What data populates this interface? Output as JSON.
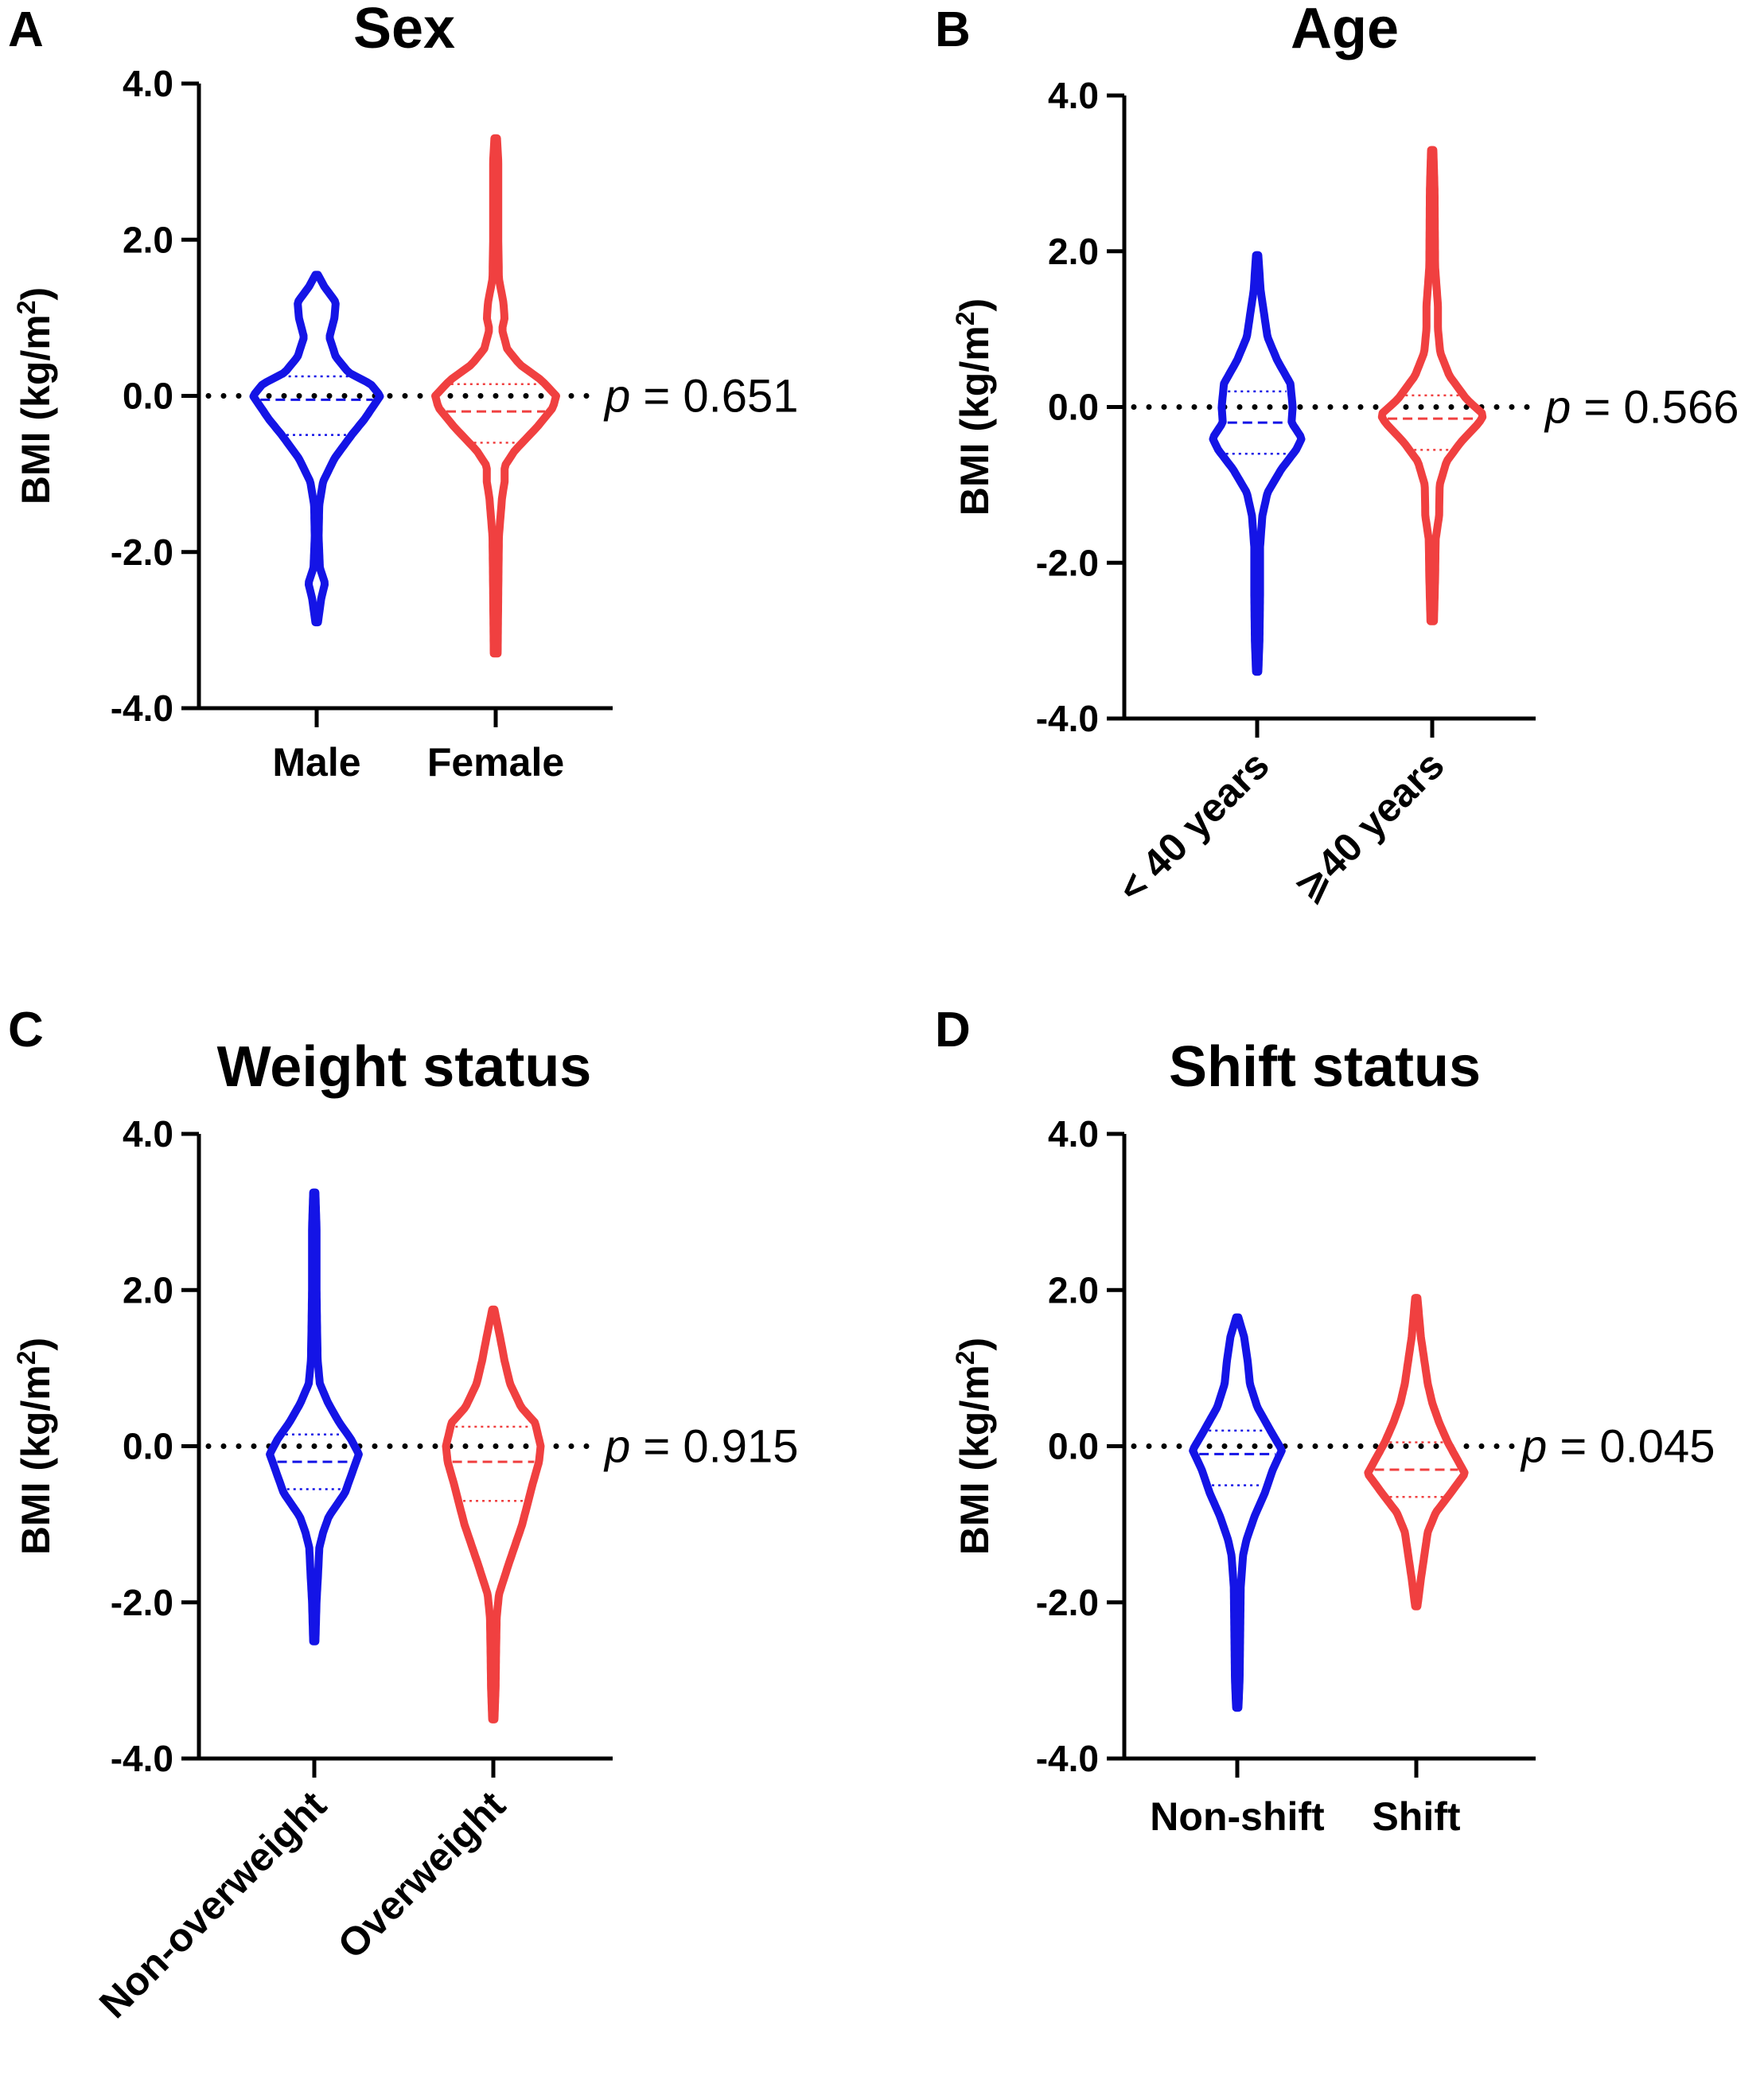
{
  "figure": {
    "colors": {
      "group1": "#1414e6",
      "group2": "#f04040",
      "axis": "#000000"
    }
  },
  "chart_data": [
    {
      "type": "violin",
      "panel": "A",
      "title": "Sex",
      "ylabel_main": "BMI (kg/m",
      "ylabel_sup": "2",
      "ylabel_close": ")",
      "ylim": [
        -4.0,
        4.0
      ],
      "yticks": [
        "4.0",
        "2.0",
        "0.0",
        "-2.0",
        "-4.0"
      ],
      "reference_line": 0,
      "p_label": "p",
      "p_text": " = 0.651",
      "label_rotation": 0,
      "categories": [
        "Male",
        "Female"
      ],
      "series": [
        {
          "name": "Male",
          "median": -0.05,
          "q1": -0.5,
          "q3": 0.25,
          "min": -2.9,
          "max": 1.55,
          "profile": [
            [
              -2.9,
              0.02
            ],
            [
              -2.6,
              0.07
            ],
            [
              -2.4,
              0.13
            ],
            [
              -2.2,
              0.05
            ],
            [
              -1.8,
              0.03
            ],
            [
              -1.4,
              0.04
            ],
            [
              -1.1,
              0.1
            ],
            [
              -0.8,
              0.28
            ],
            [
              -0.5,
              0.55
            ],
            [
              -0.3,
              0.75
            ],
            [
              0.0,
              1.0
            ],
            [
              0.15,
              0.85
            ],
            [
              0.3,
              0.5
            ],
            [
              0.5,
              0.3
            ],
            [
              0.75,
              0.2
            ],
            [
              1.0,
              0.28
            ],
            [
              1.2,
              0.3
            ],
            [
              1.4,
              0.12
            ],
            [
              1.55,
              0.02
            ]
          ]
        },
        {
          "name": "Female",
          "median": -0.2,
          "q1": -0.6,
          "q3": 0.15,
          "min": -3.3,
          "max": 3.3,
          "profile": [
            [
              -3.3,
              0.03
            ],
            [
              -2.5,
              0.04
            ],
            [
              -1.8,
              0.05
            ],
            [
              -1.3,
              0.1
            ],
            [
              -1.1,
              0.14
            ],
            [
              -0.9,
              0.14
            ],
            [
              -0.7,
              0.3
            ],
            [
              -0.4,
              0.65
            ],
            [
              -0.15,
              0.9
            ],
            [
              0.0,
              0.95
            ],
            [
              0.2,
              0.72
            ],
            [
              0.4,
              0.38
            ],
            [
              0.6,
              0.18
            ],
            [
              0.85,
              0.1
            ],
            [
              1.0,
              0.14
            ],
            [
              1.2,
              0.12
            ],
            [
              1.5,
              0.05
            ],
            [
              2.0,
              0.04
            ],
            [
              3.0,
              0.04
            ],
            [
              3.3,
              0.02
            ]
          ]
        }
      ]
    },
    {
      "type": "violin",
      "panel": "B",
      "title": "Age",
      "ylabel_main": "BMI (kg/m",
      "ylabel_sup": "2",
      "ylabel_close": ")",
      "ylim": [
        -4.0,
        4.0
      ],
      "yticks": [
        "4.0",
        "2.0",
        "0.0",
        "-2.0",
        "-4.0"
      ],
      "reference_line": 0,
      "p_label": "p",
      "p_text": " = 0.566",
      "label_rotation": -45,
      "categories": [
        "< 40 years",
        "⩾40 years"
      ],
      "series": [
        {
          "name": "< 40 years",
          "median": -0.2,
          "q1": -0.6,
          "q3": 0.2,
          "min": -3.4,
          "max": 1.95,
          "profile": [
            [
              -3.4,
              0.02
            ],
            [
              -3.0,
              0.04
            ],
            [
              -2.4,
              0.05
            ],
            [
              -1.8,
              0.05
            ],
            [
              -1.4,
              0.09
            ],
            [
              -1.1,
              0.18
            ],
            [
              -0.8,
              0.42
            ],
            [
              -0.55,
              0.68
            ],
            [
              -0.4,
              0.78
            ],
            [
              -0.2,
              0.6
            ],
            [
              0.0,
              0.62
            ],
            [
              0.3,
              0.58
            ],
            [
              0.6,
              0.35
            ],
            [
              0.9,
              0.18
            ],
            [
              1.2,
              0.12
            ],
            [
              1.5,
              0.06
            ],
            [
              1.95,
              0.02
            ]
          ]
        },
        {
          "name": "⩾40 years",
          "median": -0.15,
          "q1": -0.55,
          "q3": 0.15,
          "min": -2.75,
          "max": 3.3,
          "profile": [
            [
              -2.75,
              0.03
            ],
            [
              -2.2,
              0.05
            ],
            [
              -1.7,
              0.06
            ],
            [
              -1.4,
              0.12
            ],
            [
              -1.0,
              0.13
            ],
            [
              -0.7,
              0.25
            ],
            [
              -0.45,
              0.5
            ],
            [
              -0.2,
              0.82
            ],
            [
              -0.1,
              0.9
            ],
            [
              0.1,
              0.6
            ],
            [
              0.4,
              0.3
            ],
            [
              0.7,
              0.14
            ],
            [
              1.0,
              0.1
            ],
            [
              1.3,
              0.1
            ],
            [
              1.8,
              0.05
            ],
            [
              2.8,
              0.04
            ],
            [
              3.3,
              0.02
            ]
          ]
        }
      ]
    },
    {
      "type": "violin",
      "panel": "C",
      "title": "Weight status",
      "ylabel_main": "BMI (kg/m",
      "ylabel_sup": "2",
      "ylabel_close": ")",
      "ylim": [
        -4.0,
        4.0
      ],
      "yticks": [
        "4.0",
        "2.0",
        "0.0",
        "-2.0",
        "-4.0"
      ],
      "reference_line": 0,
      "p_label": "p",
      "p_text": " = 0.915",
      "label_rotation": -45,
      "categories": [
        "Non-overweight",
        "Overweight"
      ],
      "series": [
        {
          "name": "Non-overweight",
          "median": -0.2,
          "q1": -0.55,
          "q3": 0.15,
          "min": -2.5,
          "max": 3.25,
          "profile": [
            [
              -2.5,
              0.02
            ],
            [
              -2.0,
              0.04
            ],
            [
              -1.6,
              0.07
            ],
            [
              -1.3,
              0.09
            ],
            [
              -1.1,
              0.16
            ],
            [
              -0.9,
              0.26
            ],
            [
              -0.6,
              0.55
            ],
            [
              -0.3,
              0.7
            ],
            [
              -0.1,
              0.8
            ],
            [
              0.1,
              0.65
            ],
            [
              0.3,
              0.45
            ],
            [
              0.55,
              0.25
            ],
            [
              0.8,
              0.1
            ],
            [
              1.1,
              0.06
            ],
            [
              1.5,
              0.05
            ],
            [
              2.0,
              0.04
            ],
            [
              2.8,
              0.04
            ],
            [
              3.25,
              0.02
            ]
          ]
        },
        {
          "name": "Overweight",
          "median": -0.2,
          "q1": -0.7,
          "q3": 0.25,
          "min": -3.5,
          "max": 1.75,
          "profile": [
            [
              -3.5,
              0.02
            ],
            [
              -3.1,
              0.04
            ],
            [
              -2.6,
              0.05
            ],
            [
              -2.2,
              0.06
            ],
            [
              -1.9,
              0.1
            ],
            [
              -1.5,
              0.28
            ],
            [
              -1.0,
              0.52
            ],
            [
              -0.5,
              0.7
            ],
            [
              -0.2,
              0.82
            ],
            [
              0.0,
              0.85
            ],
            [
              0.3,
              0.75
            ],
            [
              0.5,
              0.5
            ],
            [
              0.8,
              0.3
            ],
            [
              1.1,
              0.2
            ],
            [
              1.4,
              0.12
            ],
            [
              1.75,
              0.02
            ]
          ]
        }
      ]
    },
    {
      "type": "violin",
      "panel": "D",
      "title": "Shift status",
      "ylabel_main": "BMI (kg/m",
      "ylabel_sup": "2",
      "ylabel_close": ")",
      "ylim": [
        -4.0,
        4.0
      ],
      "yticks": [
        "4.0",
        "2.0",
        "0.0",
        "-2.0",
        "-4.0"
      ],
      "reference_line": 0,
      "p_label": "p",
      "p_text": " = 0.045",
      "label_rotation": 0,
      "categories": [
        "Non-shift",
        "Shift"
      ],
      "series": [
        {
          "name": "Non-shift",
          "median": -0.1,
          "q1": -0.5,
          "q3": 0.2,
          "min": -3.35,
          "max": 1.65,
          "profile": [
            [
              -3.35,
              0.02
            ],
            [
              -3.0,
              0.04
            ],
            [
              -2.4,
              0.05
            ],
            [
              -1.8,
              0.06
            ],
            [
              -1.4,
              0.1
            ],
            [
              -1.2,
              0.16
            ],
            [
              -0.9,
              0.3
            ],
            [
              -0.6,
              0.48
            ],
            [
              -0.3,
              0.62
            ],
            [
              -0.05,
              0.78
            ],
            [
              0.2,
              0.58
            ],
            [
              0.5,
              0.35
            ],
            [
              0.8,
              0.22
            ],
            [
              1.1,
              0.18
            ],
            [
              1.4,
              0.12
            ],
            [
              1.65,
              0.02
            ]
          ]
        },
        {
          "name": "Shift",
          "median": -0.3,
          "q1": -0.65,
          "q3": 0.05,
          "min": -2.05,
          "max": 1.9,
          "profile": [
            [
              -2.05,
              0.02
            ],
            [
              -1.7,
              0.08
            ],
            [
              -1.4,
              0.14
            ],
            [
              -1.1,
              0.2
            ],
            [
              -0.85,
              0.34
            ],
            [
              -0.6,
              0.6
            ],
            [
              -0.35,
              0.85
            ],
            [
              -0.15,
              0.7
            ],
            [
              0.05,
              0.55
            ],
            [
              0.3,
              0.4
            ],
            [
              0.55,
              0.28
            ],
            [
              0.8,
              0.2
            ],
            [
              1.1,
              0.14
            ],
            [
              1.4,
              0.08
            ],
            [
              1.9,
              0.02
            ]
          ]
        }
      ]
    }
  ]
}
